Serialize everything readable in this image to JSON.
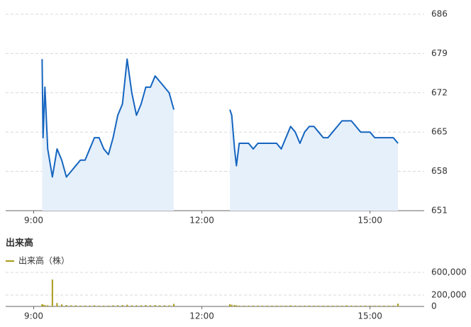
{
  "chart_data": [
    {
      "type": "line",
      "color": "#1565c0",
      "area_color": "#e6f0fa",
      "x": [
        549,
        550,
        552,
        555,
        560,
        565,
        570,
        575,
        580,
        585,
        590,
        595,
        600,
        605,
        610,
        615,
        620,
        625,
        630,
        635,
        640,
        645,
        650,
        655,
        660,
        665,
        670,
        675,
        680,
        685,
        690,
        720,
        750,
        752,
        755,
        757,
        760,
        765,
        770,
        775,
        780,
        785,
        790,
        795,
        800,
        805,
        810,
        815,
        820,
        825,
        830,
        835,
        840,
        845,
        850,
        855,
        860,
        865,
        870,
        875,
        880,
        885,
        890,
        895,
        900,
        905,
        910,
        915,
        920,
        925,
        930
      ],
      "values": [
        678,
        664,
        673,
        662,
        657,
        662,
        660,
        657,
        658,
        659,
        660,
        660,
        662,
        664,
        664,
        662,
        661,
        664,
        668,
        670,
        678,
        672,
        668,
        670,
        673,
        673,
        675,
        674,
        673,
        672,
        669,
        null,
        669,
        668,
        662,
        659,
        663,
        663,
        663,
        662,
        663,
        663,
        663,
        663,
        663,
        662,
        664,
        666,
        665,
        663,
        665,
        666,
        666,
        665,
        664,
        664,
        665,
        666,
        667,
        667,
        667,
        666,
        665,
        665,
        665,
        664,
        664,
        664,
        664,
        664,
        663
      ],
      "xlim": [
        510,
        958
      ],
      "xticks": [
        {
          "value": 540,
          "label": "9:00"
        },
        {
          "value": 720,
          "label": "12:00"
        },
        {
          "value": 900,
          "label": "15:00"
        }
      ],
      "ylim": [
        651,
        686
      ],
      "yticks": [
        651,
        658,
        665,
        672,
        679,
        686
      ],
      "grid": true
    },
    {
      "type": "bar",
      "title": "出来高",
      "x": [
        549,
        550,
        552,
        555,
        560,
        565,
        570,
        575,
        580,
        585,
        590,
        595,
        600,
        605,
        610,
        615,
        620,
        625,
        630,
        635,
        640,
        645,
        650,
        655,
        660,
        665,
        670,
        675,
        680,
        685,
        690,
        750,
        752,
        755,
        757,
        760,
        765,
        770,
        775,
        780,
        785,
        790,
        795,
        800,
        805,
        810,
        815,
        820,
        825,
        830,
        835,
        840,
        845,
        850,
        855,
        860,
        865,
        870,
        875,
        880,
        885,
        890,
        895,
        900,
        905,
        910,
        915,
        920,
        925,
        930
      ],
      "series": [
        {
          "name": "出来高（株）",
          "color": "#a89a1a",
          "values": [
            40000,
            30000,
            25000,
            20000,
            475000,
            60000,
            35000,
            25000,
            20000,
            20000,
            15000,
            15000,
            15000,
            20000,
            15000,
            15000,
            15000,
            20000,
            20000,
            25000,
            30000,
            20000,
            20000,
            20000,
            25000,
            20000,
            25000,
            20000,
            20000,
            20000,
            45000,
            40000,
            30000,
            25000,
            20000,
            15000,
            15000,
            15000,
            15000,
            15000,
            15000,
            15000,
            15000,
            15000,
            15000,
            15000,
            20000,
            15000,
            15000,
            15000,
            15000,
            15000,
            15000,
            15000,
            15000,
            15000,
            15000,
            15000,
            20000,
            15000,
            15000,
            15000,
            15000,
            15000,
            15000,
            15000,
            15000,
            15000,
            15000,
            50000
          ]
        }
      ],
      "xlim": [
        510,
        958
      ],
      "xticks": [
        {
          "value": 540,
          "label": "9:00"
        },
        {
          "value": 720,
          "label": "12:00"
        },
        {
          "value": 900,
          "label": "15:00"
        }
      ],
      "ylim": [
        0,
        750000
      ],
      "yticks": [
        0,
        {
          "value": 200000,
          "label": "200,000"
        },
        {
          "value": 600000,
          "label": "600,000"
        }
      ],
      "grid": true
    }
  ]
}
